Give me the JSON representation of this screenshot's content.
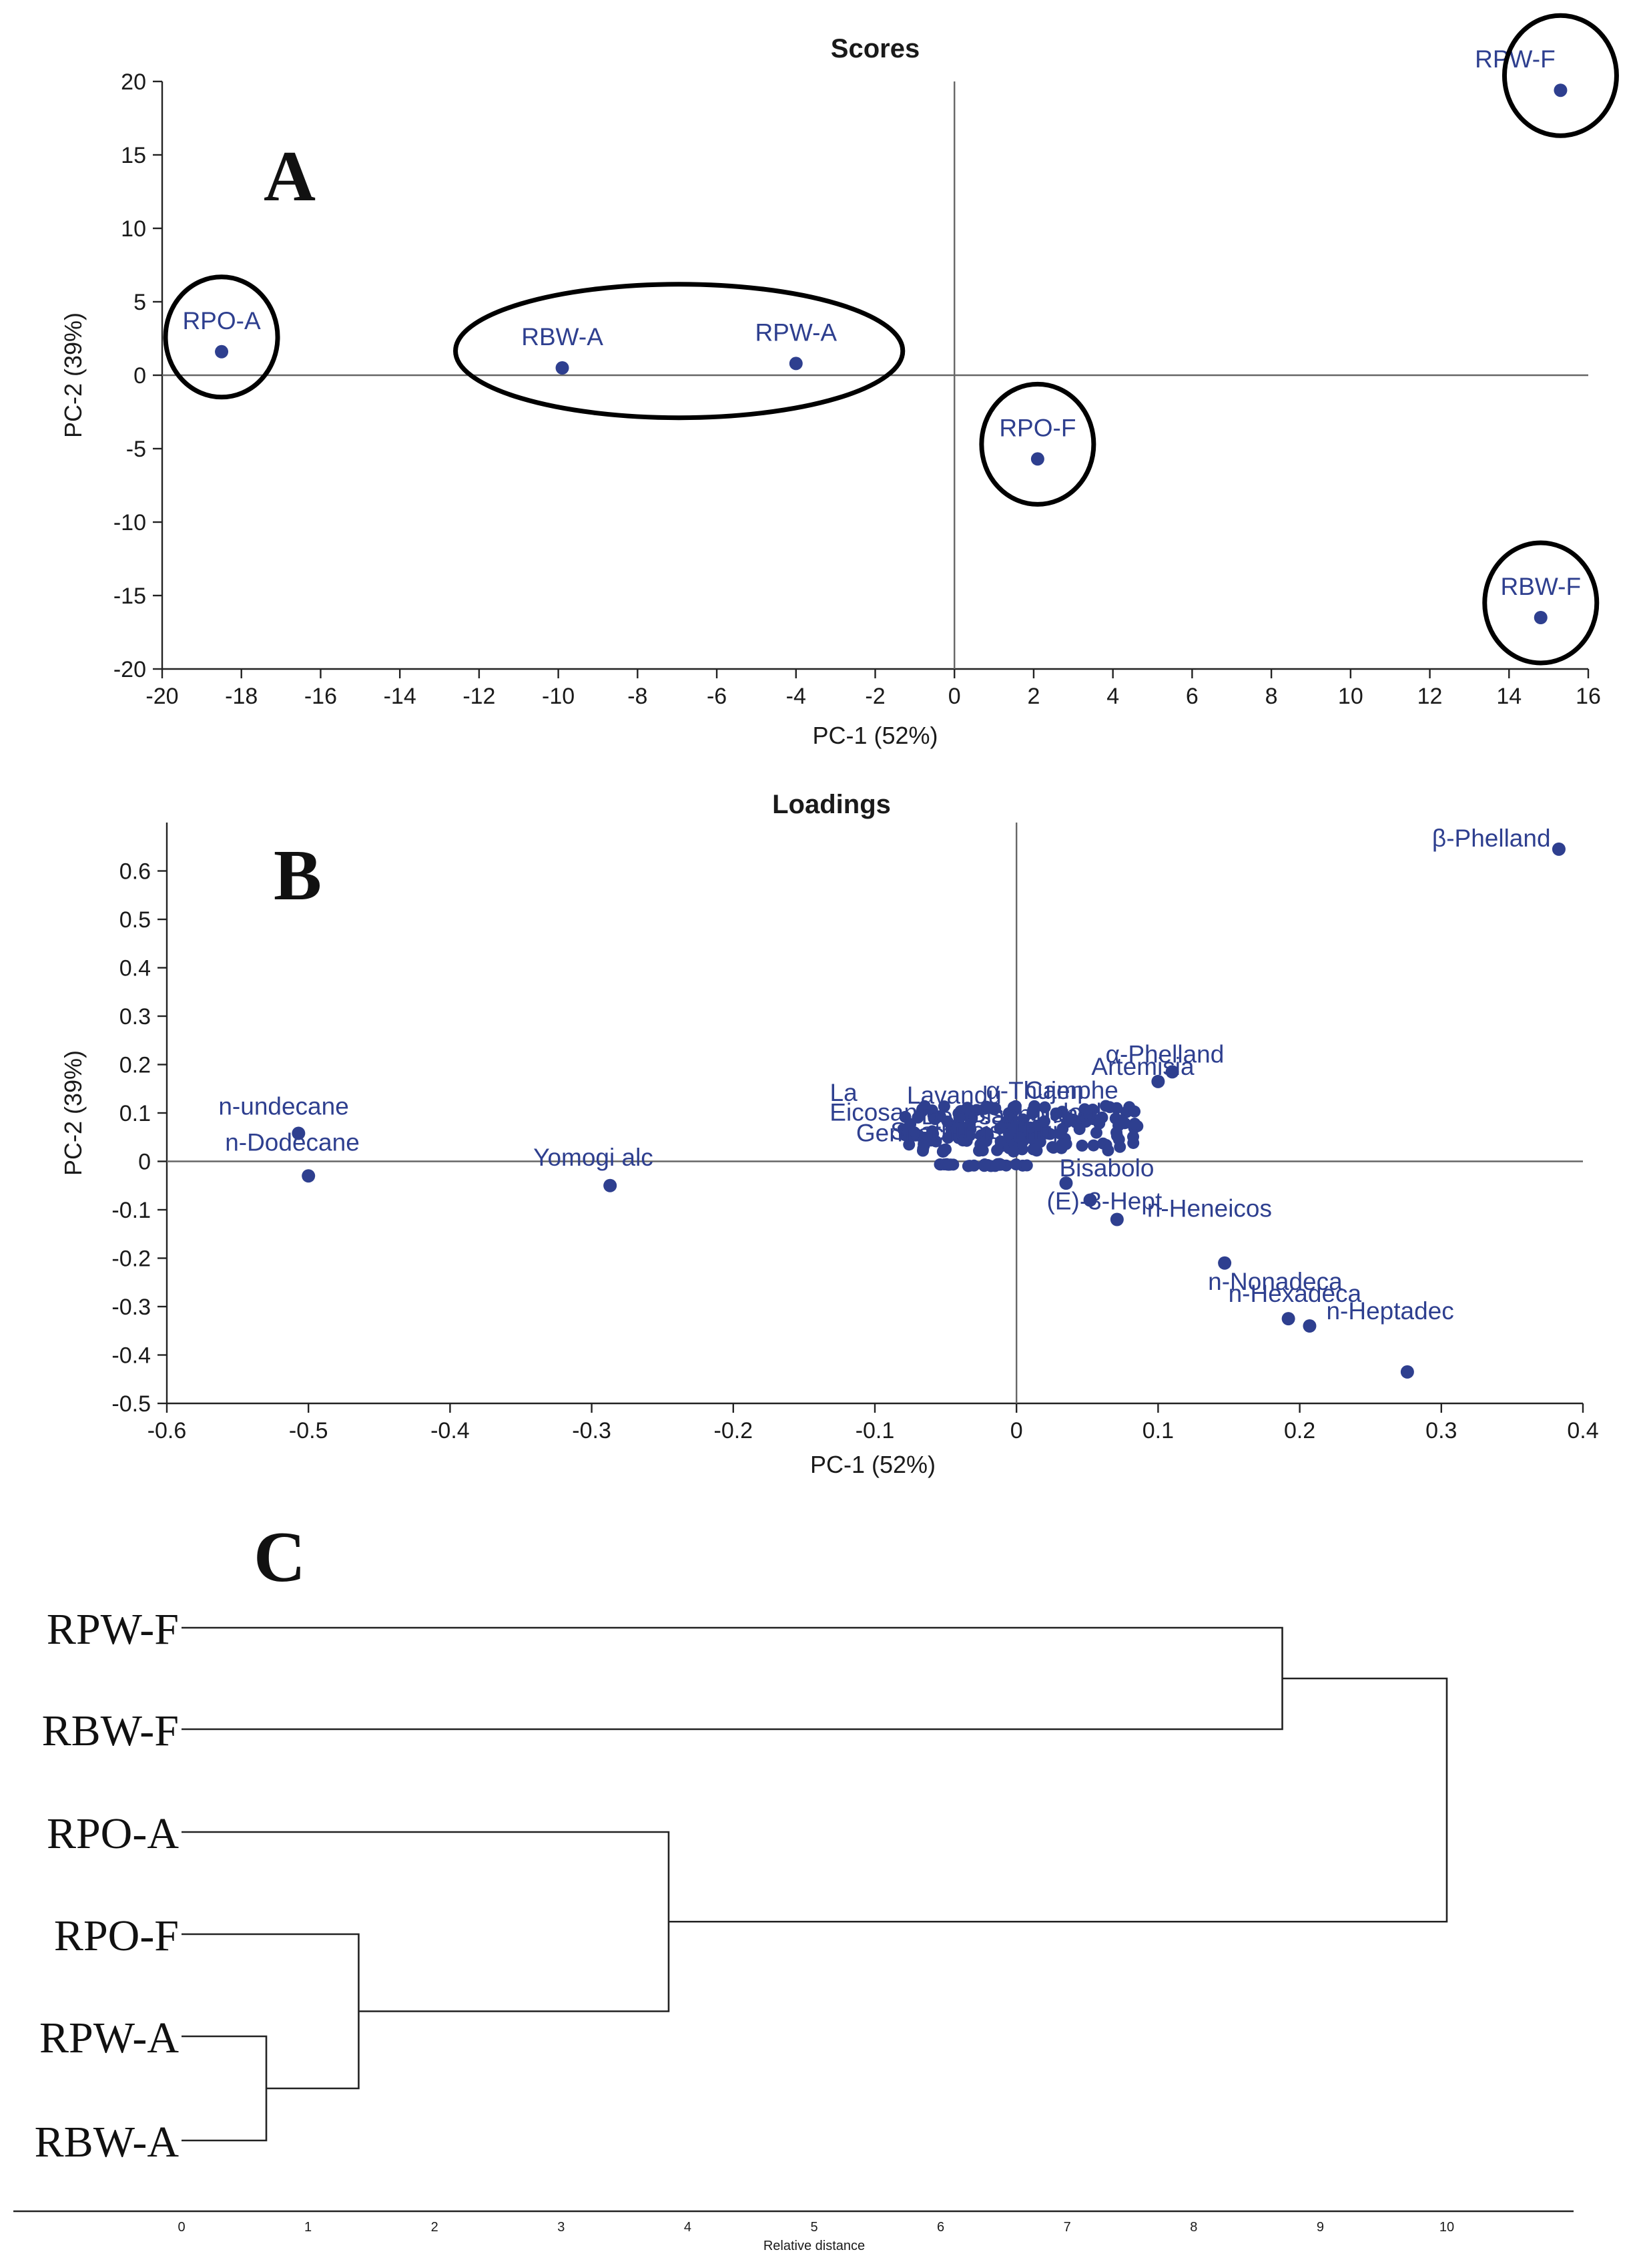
{
  "chart_data": [
    {
      "id": "scores",
      "type": "scatter",
      "panel_letter": "A",
      "title": "Scores",
      "xlabel": "PC-1 (52%)",
      "ylabel": "PC-2 (39%)",
      "xlim": [
        -20,
        16
      ],
      "ylim": [
        -20,
        20
      ],
      "xticks": [
        -20,
        -18,
        -16,
        -14,
        -12,
        -10,
        -8,
        -6,
        -4,
        -2,
        0,
        2,
        4,
        6,
        8,
        10,
        12,
        14,
        16
      ],
      "yticks": [
        -20,
        -15,
        -10,
        -5,
        0,
        5,
        10,
        15,
        20
      ],
      "points": [
        {
          "label": "RPO-A",
          "x": -18.5,
          "y": 1.6
        },
        {
          "label": "RBW-A",
          "x": -9.9,
          "y": 0.5
        },
        {
          "label": "RPW-A",
          "x": -4.0,
          "y": 0.8
        },
        {
          "label": "RPO-F",
          "x": 2.1,
          "y": -5.7
        },
        {
          "label": "RPW-F",
          "x": 15.3,
          "y": 19.4
        },
        {
          "label": "RBW-F",
          "x": 14.8,
          "y": -16.5
        }
      ],
      "groups": [
        [
          "RPO-A"
        ],
        [
          "RBW-A",
          "RPW-A"
        ],
        [
          "RPO-F"
        ],
        [
          "RPW-F"
        ],
        [
          "RBW-F"
        ]
      ]
    },
    {
      "id": "loadings",
      "type": "scatter",
      "panel_letter": "B",
      "title": "Loadings",
      "xlabel": "PC-1 (52%)",
      "ylabel": "PC-2 (39%)",
      "xlim": [
        -0.6,
        0.4
      ],
      "ylim": [
        -0.5,
        0.7
      ],
      "xticks": [
        -0.6,
        -0.5,
        -0.4,
        -0.3,
        -0.2,
        -0.1,
        0,
        0.1,
        0.2,
        0.3,
        0.4
      ],
      "yticks": [
        -0.5,
        -0.4,
        -0.3,
        -0.2,
        -0.1,
        0,
        0.1,
        0.2,
        0.3,
        0.4,
        0.5,
        0.6
      ],
      "points": [
        {
          "label": "β-Phelland",
          "x": 0.383,
          "y": 0.645
        },
        {
          "label": "α-Phelland",
          "x": 0.11,
          "y": 0.185
        },
        {
          "label": "Artemisia",
          "x": 0.1,
          "y": 0.165
        },
        {
          "label": "n-undecane",
          "x": -0.507,
          "y": 0.058
        },
        {
          "label": "n-Dodecane",
          "x": -0.5,
          "y": -0.03
        },
        {
          "label": "Yomogi alc",
          "x": -0.287,
          "y": -0.05
        },
        {
          "label": "Bisabolo",
          "x": 0.035,
          "y": -0.045
        },
        {
          "label": "(E)-3-Hept",
          "x": 0.052,
          "y": -0.08
        },
        {
          "label": "n-Heneicos",
          "x": 0.071,
          "y": -0.12
        },
        {
          "label": "n-Nonadeca",
          "x": 0.147,
          "y": -0.21
        },
        {
          "label": "n-Hexadeca",
          "x": 0.192,
          "y": -0.325
        },
        {
          "label": "n-Heptadec",
          "x": 0.207,
          "y": -0.34
        },
        {
          "label": "",
          "x": 0.276,
          "y": -0.435
        }
      ],
      "cluster_labels": [
        "La",
        "Lavandu",
        "α-Thujen",
        "Camphe",
        "Eicosan",
        "Docosan",
        "Bisabolen",
        "Linalool",
        "Germacr",
        "Spathul",
        "cis-Thuj"
      ]
    },
    {
      "id": "dendrogram",
      "type": "dendrogram",
      "panel_letter": "C",
      "xlabel": "Relative distance",
      "xticks": [
        0,
        1,
        2,
        3,
        4,
        5,
        6,
        7,
        8,
        9,
        10
      ],
      "leaves": [
        "RPW-F",
        "RBW-F",
        "RPO-A",
        "RPO-F",
        "RPW-A",
        "RBW-A"
      ],
      "merges": [
        {
          "left": "RPW-A",
          "right": "RBW-A",
          "height": 0.67
        },
        {
          "left": "RPO-F",
          "right": "RPW-A+RBW-A",
          "height": 1.4
        },
        {
          "left": "RPO-A",
          "right": "RPO-F+RPW-A+RBW-A",
          "height": 3.85
        },
        {
          "left": "RPW-F",
          "right": "RBW-F",
          "height": 8.7
        },
        {
          "left": "RPW-F+RBW-F",
          "right": "RPO-A+RPO-F+RPW-A+RBW-A",
          "height": 10.0
        }
      ]
    }
  ],
  "colors": {
    "points": "#2e3f8f",
    "axes": "#222222",
    "rings": "#000000"
  }
}
